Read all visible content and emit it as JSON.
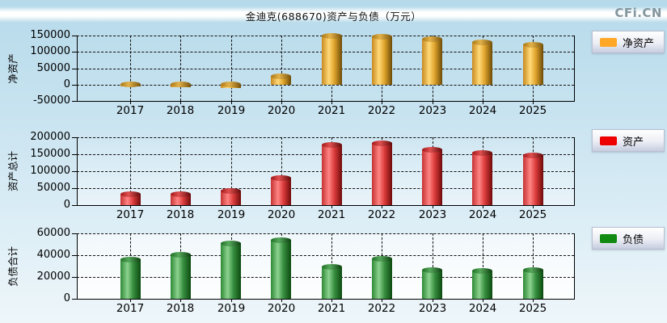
{
  "page": {
    "title": "金迪克(688670)资产与负债（万元）",
    "watermark": "CFi.CN"
  },
  "chart_data": [
    {
      "type": "bar",
      "ylabel": "净资产",
      "legend": "净资产",
      "categories": [
        "2017",
        "2018",
        "2019",
        "2020",
        "2021",
        "2022",
        "2023",
        "2024",
        "2025"
      ],
      "values": [
        -5000,
        -9000,
        -10500,
        25000,
        148000,
        147500,
        138000,
        128000,
        121000
      ],
      "ylim": [
        -50000,
        150000
      ],
      "yticks": [
        150000,
        100000,
        50000,
        0,
        -50000
      ],
      "grid": "dashed",
      "legend_position": "right",
      "colors": {
        "swatch": "#FFA827",
        "edge": "#C98A20",
        "light": "#FFD978",
        "mid": "#E0A42C",
        "dark": "#6B4A08",
        "cap_edge": "#A87614",
        "cap_light": "#E3B24A",
        "cap_dark": "#7A530A"
      }
    },
    {
      "type": "bar",
      "ylabel": "资产总计",
      "legend": "资产",
      "categories": [
        "2017",
        "2018",
        "2019",
        "2020",
        "2021",
        "2022",
        "2023",
        "2024",
        "2025"
      ],
      "values": [
        31000,
        31500,
        41000,
        80000,
        177000,
        183000,
        164000,
        153500,
        147000
      ],
      "ylim": [
        0,
        200000
      ],
      "yticks": [
        200000,
        150000,
        100000,
        50000,
        0
      ],
      "grid": "dashed",
      "legend_position": "right",
      "colors": {
        "swatch": "#EE0000",
        "edge": "#C63333",
        "light": "#FF8484",
        "mid": "#DD3C3C",
        "dark": "#6E0A0A",
        "cap_edge": "#A01818",
        "cap_light": "#E05050",
        "cap_dark": "#600808"
      }
    },
    {
      "type": "bar",
      "ylabel": "负债合计",
      "legend": "负债",
      "categories": [
        "2017",
        "2018",
        "2019",
        "2020",
        "2021",
        "2022",
        "2023",
        "2024",
        "2025"
      ],
      "values": [
        36000,
        40500,
        51000,
        54000,
        29000,
        36500,
        26000,
        25500,
        26000
      ],
      "ylim": [
        0,
        60000
      ],
      "yticks": [
        60000,
        40000,
        20000,
        0
      ],
      "grid": "dashed",
      "legend_position": "right",
      "colors": {
        "swatch": "#118A11",
        "edge": "#2F8A35",
        "light": "#8CD290",
        "mid": "#389040",
        "dark": "#0C4A10",
        "cap_edge": "#1E6E24",
        "cap_light": "#57A85D",
        "cap_dark": "#0A3E0D"
      }
    }
  ]
}
